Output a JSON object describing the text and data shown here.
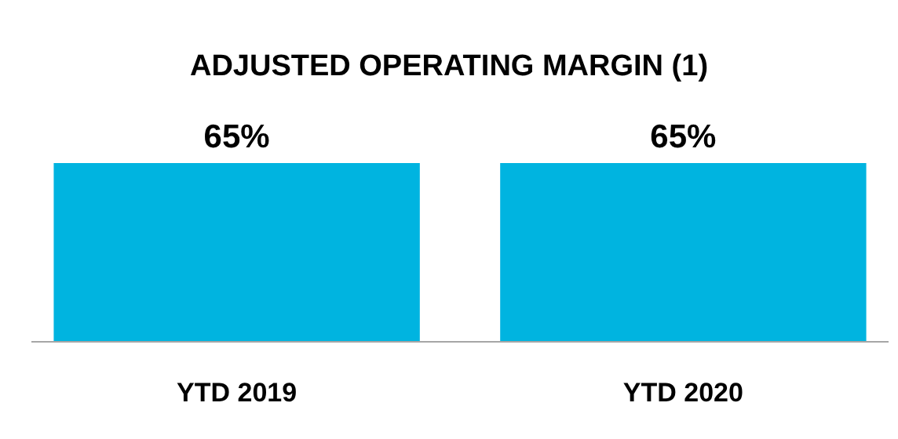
{
  "chart_data": {
    "type": "bar",
    "title": "ADJUSTED OPERATING MARGIN (1)",
    "categories": [
      "YTD 2019",
      "YTD 2020"
    ],
    "values": [
      65,
      65
    ],
    "value_labels": [
      "65%",
      "65%"
    ],
    "color": "#00b4e0",
    "tick_labels": "x"
  }
}
